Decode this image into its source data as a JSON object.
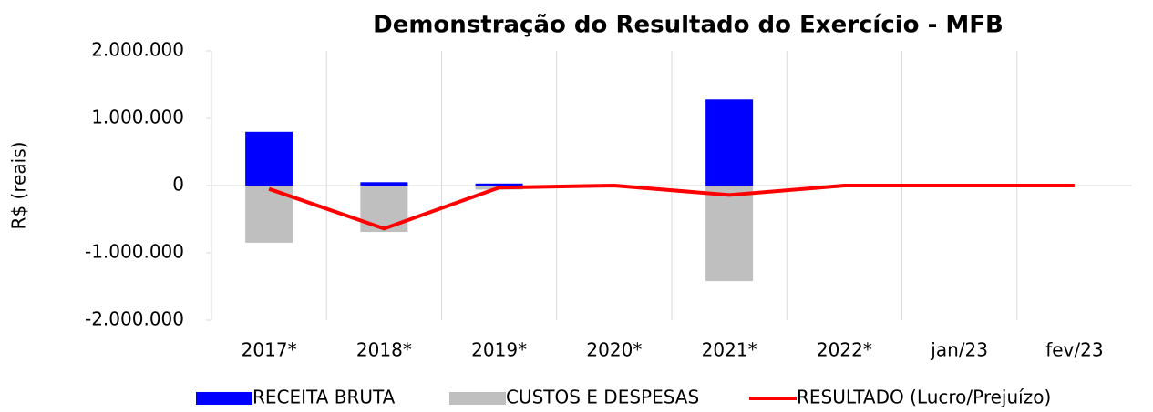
{
  "chart_data": {
    "type": "bar",
    "title": "Demonstração do Resultado do Exercício - MFB",
    "y_label": "R$ (reais)",
    "categories": [
      "2017*",
      "2018*",
      "2019*",
      "2020*",
      "2021*",
      "2022*",
      "jan/23",
      "fev/23"
    ],
    "series": [
      {
        "name": "RECEITA BRUTA",
        "type": "bar",
        "color": "#0000ff",
        "values": [
          800000,
          50000,
          30000,
          0,
          1280000,
          0,
          0,
          0
        ]
      },
      {
        "name": "CUSTOS E DESPESAS",
        "type": "bar",
        "color": "#bfbfbf",
        "values": [
          -850000,
          -690000,
          -60000,
          0,
          -1420000,
          0,
          0,
          0
        ]
      },
      {
        "name": "RESULTADO (Lucro/Prejuízo)",
        "type": "line",
        "color": "#ff0000",
        "values": [
          -50000,
          -640000,
          -30000,
          0,
          -140000,
          0,
          0,
          0
        ]
      }
    ],
    "ylim": [
      -2000000,
      2000000
    ],
    "yticks": [
      {
        "value": -2000000,
        "label": "-2.000.000"
      },
      {
        "value": -1000000,
        "label": "-1.000.000"
      },
      0,
      {
        "value": 1000000,
        "label": "1.000.000"
      },
      {
        "value": 2000000,
        "label": "2.000.000"
      }
    ],
    "negative_tick_color": "#ff0000",
    "legend": "bottom"
  }
}
